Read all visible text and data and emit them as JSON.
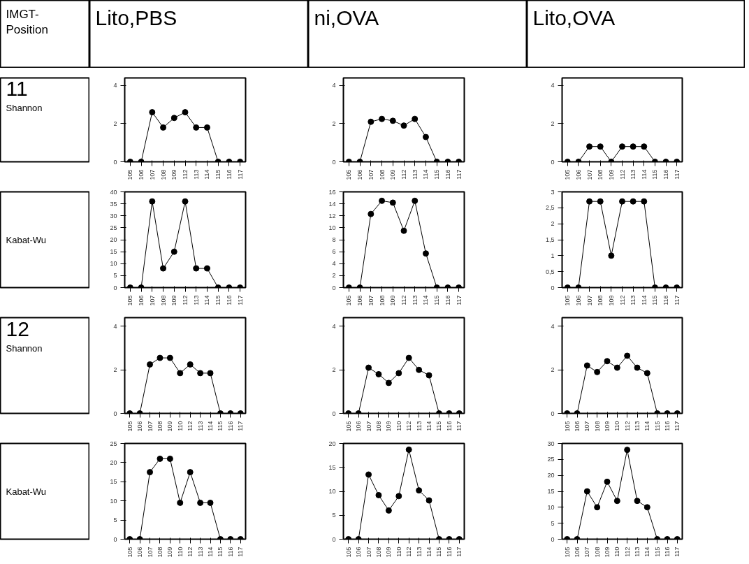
{
  "chart_data": [
    {
      "type": "other",
      "annotations": [
        "IMGT-Position"
      ]
    },
    {
      "type": "other",
      "title": "Lito,PBS"
    },
    {
      "type": "other",
      "title": "ni,OVA"
    },
    {
      "type": "other",
      "title": "Lito,OVA"
    },
    {
      "type": "other",
      "title": "11",
      "annotations": [
        "Shannon"
      ]
    },
    {
      "type": "line",
      "categories": [
        "105",
        "106",
        "107",
        "108",
        "109",
        "112",
        "113",
        "114",
        "115",
        "116",
        "117"
      ],
      "values": [
        0,
        0,
        2.6,
        1.8,
        2.3,
        2.6,
        1.8,
        1.8,
        0,
        0,
        0
      ],
      "color": "#000000",
      "marker": "circle",
      "ylim": [
        0,
        4.4
      ],
      "yticks": [
        0,
        2,
        4
      ]
    },
    {
      "type": "line",
      "categories": [
        "105",
        "106",
        "107",
        "108",
        "109",
        "112",
        "113",
        "114",
        "115",
        "116",
        "117"
      ],
      "values": [
        0,
        0,
        2.1,
        2.25,
        2.15,
        1.9,
        2.25,
        1.3,
        0,
        0,
        0
      ],
      "color": "#000000",
      "marker": "circle",
      "ylim": [
        0,
        4.4
      ],
      "yticks": [
        0,
        2,
        4
      ]
    },
    {
      "type": "line",
      "categories": [
        "105",
        "106",
        "107",
        "108",
        "109",
        "112",
        "113",
        "114",
        "115",
        "116",
        "117"
      ],
      "values": [
        0,
        0,
        0.8,
        0.8,
        0,
        0.8,
        0.8,
        0.8,
        0,
        0,
        0
      ],
      "color": "#000000",
      "marker": "circle",
      "ylim": [
        0,
        4.4
      ],
      "yticks": [
        0,
        2,
        4
      ]
    },
    {
      "type": "other",
      "annotations": [
        "Kabat-Wu"
      ]
    },
    {
      "type": "line",
      "categories": [
        "105",
        "106",
        "107",
        "108",
        "109",
        "112",
        "113",
        "114",
        "115",
        "116",
        "117"
      ],
      "values": [
        0,
        0,
        36,
        8,
        15,
        36,
        8,
        8,
        0,
        0,
        0
      ],
      "color": "#000000",
      "marker": "circle",
      "ylim": [
        0,
        40
      ],
      "yticks": [
        0,
        5,
        10,
        15,
        20,
        25,
        30,
        35,
        40
      ]
    },
    {
      "type": "line",
      "categories": [
        "105",
        "106",
        "107",
        "108",
        "109",
        "112",
        "113",
        "114",
        "115",
        "116",
        "117"
      ],
      "values": [
        0,
        0,
        12.3,
        14.5,
        14.2,
        9.5,
        14.5,
        5.7,
        0,
        0,
        0
      ],
      "color": "#000000",
      "marker": "circle",
      "ylim": [
        0,
        16
      ],
      "yticks": [
        0,
        2,
        4,
        6,
        8,
        10,
        12,
        14,
        16
      ]
    },
    {
      "type": "line",
      "categories": [
        "105",
        "106",
        "107",
        "108",
        "109",
        "112",
        "113",
        "114",
        "115",
        "116",
        "117"
      ],
      "values": [
        0,
        0,
        2.7,
        2.7,
        1,
        2.7,
        2.7,
        2.7,
        0,
        0,
        0
      ],
      "color": "#000000",
      "marker": "circle",
      "ylim": [
        0,
        3
      ],
      "yticks": [
        0,
        {
          "value": 0.5,
          "label": "0,5"
        },
        1,
        {
          "value": 1.5,
          "label": "1,5"
        },
        2,
        {
          "value": 2.5,
          "label": "2,5"
        },
        3
      ]
    },
    {
      "type": "other",
      "title": "12",
      "annotations": [
        "Shannon"
      ]
    },
    {
      "type": "line",
      "categories": [
        "105",
        "106",
        "107",
        "108",
        "109",
        "110",
        "112",
        "113",
        "114",
        "115",
        "116",
        "117"
      ],
      "values": [
        0,
        0,
        2.25,
        2.55,
        2.55,
        1.85,
        2.25,
        1.85,
        1.85,
        0,
        0,
        0
      ],
      "color": "#000000",
      "marker": "circle",
      "ylim": [
        0,
        4.4
      ],
      "yticks": [
        0,
        2,
        4
      ]
    },
    {
      "type": "line",
      "categories": [
        "105",
        "106",
        "107",
        "108",
        "109",
        "110",
        "112",
        "113",
        "114",
        "115",
        "116",
        "117"
      ],
      "values": [
        0,
        0,
        2.1,
        1.8,
        1.4,
        1.85,
        2.55,
        2.0,
        1.75,
        0,
        0,
        0
      ],
      "color": "#000000",
      "marker": "circle",
      "ylim": [
        0,
        4.4
      ],
      "yticks": [
        0,
        2,
        4
      ]
    },
    {
      "type": "line",
      "categories": [
        "105",
        "106",
        "107",
        "108",
        "109",
        "110",
        "112",
        "113",
        "114",
        "115",
        "116",
        "117"
      ],
      "values": [
        0,
        0,
        2.2,
        1.9,
        2.4,
        2.1,
        2.65,
        2.1,
        1.85,
        0,
        0,
        0
      ],
      "color": "#000000",
      "marker": "circle",
      "ylim": [
        0,
        4.4
      ],
      "yticks": [
        0,
        2,
        4
      ]
    },
    {
      "type": "other",
      "annotations": [
        "Kabat-Wu"
      ]
    },
    {
      "type": "line",
      "categories": [
        "105",
        "106",
        "107",
        "108",
        "109",
        "110",
        "112",
        "113",
        "114",
        "115",
        "116",
        "117"
      ],
      "values": [
        0,
        0,
        17.5,
        21,
        21,
        9.5,
        17.5,
        9.5,
        9.5,
        0,
        0,
        0
      ],
      "color": "#000000",
      "marker": "circle",
      "ylim": [
        0,
        25
      ],
      "yticks": [
        0,
        5,
        10,
        15,
        20,
        25
      ]
    },
    {
      "type": "line",
      "categories": [
        "105",
        "106",
        "107",
        "108",
        "109",
        "110",
        "112",
        "113",
        "114",
        "115",
        "116",
        "117"
      ],
      "values": [
        0,
        0,
        13.5,
        9.2,
        6,
        9,
        18.7,
        10.2,
        8.1,
        0,
        0,
        0
      ],
      "color": "#000000",
      "marker": "circle",
      "ylim": [
        0,
        20
      ],
      "yticks": [
        0,
        5,
        10,
        15,
        20
      ]
    },
    {
      "type": "line",
      "categories": [
        "105",
        "106",
        "107",
        "108",
        "109",
        "110",
        "112",
        "113",
        "114",
        "115",
        "116",
        "117"
      ],
      "values": [
        0,
        0,
        15,
        10,
        18,
        12,
        28,
        12,
        10,
        0,
        0,
        0
      ],
      "color": "#000000",
      "marker": "circle",
      "ylim": [
        0,
        30
      ],
      "yticks": [
        0,
        5,
        10,
        15,
        20,
        25,
        30
      ]
    }
  ]
}
